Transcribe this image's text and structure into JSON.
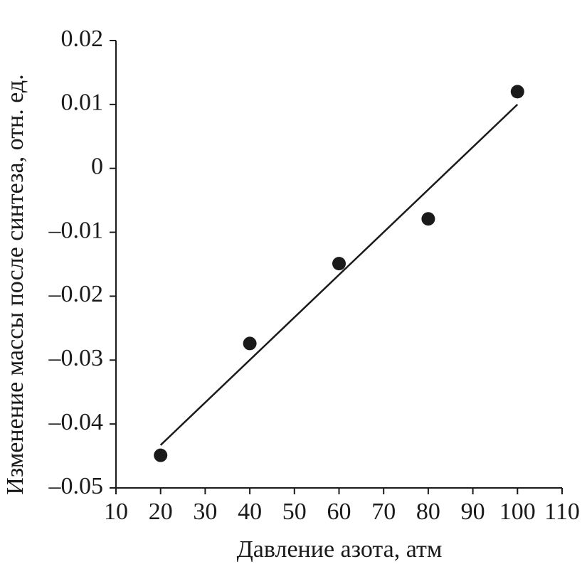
{
  "chart_data": {
    "type": "scatter",
    "x_label": "Давление азота, атм",
    "y_label": "Изменение массы после синтеза, отн. ед.",
    "xlim": [
      10,
      110
    ],
    "xticks": [
      10,
      20,
      30,
      40,
      50,
      60,
      70,
      80,
      90,
      100,
      110
    ],
    "ylim": [
      -0.05,
      0.02
    ],
    "yticks": [
      {
        "value": -0.05,
        "label": "–0.05"
      },
      {
        "value": -0.04,
        "label": "–0.04"
      },
      {
        "value": -0.03,
        "label": "–0.03"
      },
      {
        "value": -0.02,
        "label": "–0.02"
      },
      {
        "value": -0.01,
        "label": "–0.01"
      },
      0,
      0.01,
      0.02
    ],
    "grid": false,
    "series": [
      {
        "type": "scatter",
        "color": "#1a1a1a",
        "x": [
          20,
          40,
          60,
          80,
          100
        ],
        "values": [
          -0.0449,
          -0.0274,
          -0.0149,
          -0.0079,
          0.012
        ]
      },
      {
        "type": "line",
        "color": "#1a1a1a",
        "x": [
          20,
          100
        ],
        "values": [
          -0.0433,
          0.01
        ]
      }
    ]
  }
}
